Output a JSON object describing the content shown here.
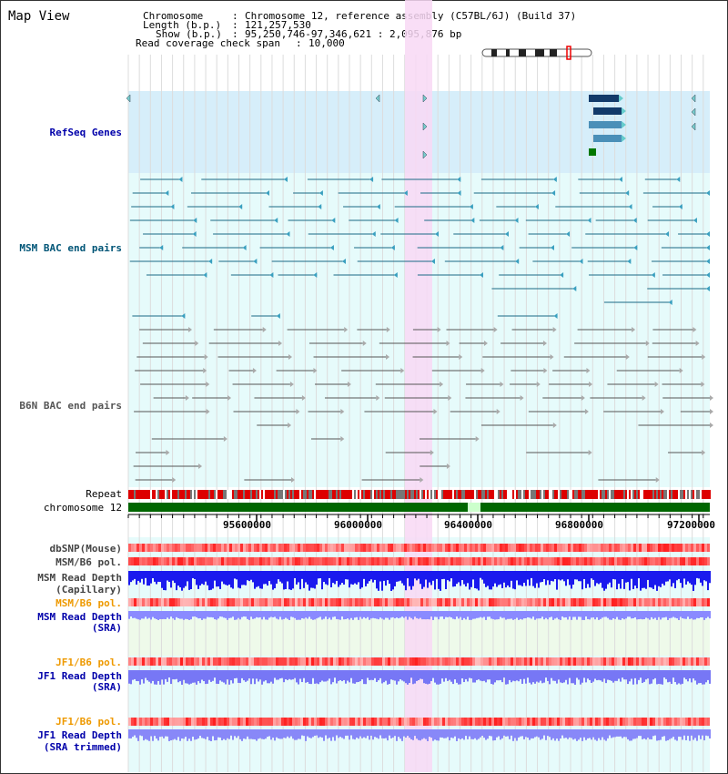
{
  "page": {
    "title": "Map View"
  },
  "header": {
    "chromosome_key": "Chromosome",
    "chromosome_val": "Chromosome 12, reference assembly (C57BL/6J) (Build 37)",
    "length_key": "Length (b.p.)",
    "length_val": "121,257,530",
    "show_key": "Show (b.p.)",
    "show_val": "95,250,746-97,346,621 : 2,095,876 bp",
    "coverage_key": "Read coverage check span",
    "coverage_val": "10,000"
  },
  "tracks": {
    "refseq": "RefSeq Genes",
    "msm_bac": "MSM BAC end pairs",
    "b6n_bac": "B6N BAC end pairs",
    "repeat": "Repeat",
    "chromosome": "chromosome 12",
    "dbsnp": "dbSNP(Mouse)",
    "msm_b6_pol_1": "MSM/B6 pol.",
    "msm_read_depth_cap_1": "MSM Read Depth",
    "msm_read_depth_cap_2": "(Capillary)",
    "msm_b6_pol_2": "MSM/B6 pol.",
    "msm_read_depth_sra_1": "MSM Read Depth",
    "msm_read_depth_sra_2": "(SRA)",
    "jf1_b6_pol_1": "JF1/B6 pol.",
    "jf1_read_depth_sra_1": "JF1 Read Depth",
    "jf1_read_depth_sra_2": "(SRA)",
    "jf1_b6_pol_2": "JF1/B6 pol.",
    "jf1_read_depth_trim_1": "JF1 Read Depth",
    "jf1_read_depth_trim_2": "(SRA trimmed)"
  },
  "ruler": {
    "ticks": [
      "95600000",
      "96000000",
      "96400000",
      "96800000",
      "97200000"
    ]
  },
  "colors": {
    "refseq_bg": "#d6eefa",
    "track_bg": "#e6fbfb",
    "highlight": "#f8d8f4",
    "label_blue": "#0000aa",
    "label_teal": "#005577",
    "label_orange": "#ee9900",
    "chrom_green": "#006600"
  }
}
